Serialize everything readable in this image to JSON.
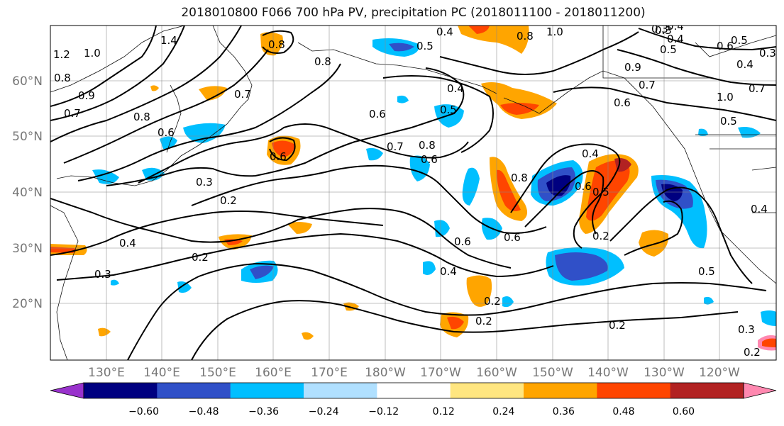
{
  "title": "2018010800 F066 700 hPa PV, precipitation PC (2018011100 - 2018011200)",
  "lat_labels": [
    "60°N",
    "50°N",
    "40°N",
    "30°N",
    "20°N"
  ],
  "lon_labels": [
    "130°E",
    "140°E",
    "150°E",
    "160°E",
    "170°E",
    "180°W",
    "170°W",
    "160°W",
    "150°W",
    "140°W",
    "130°W",
    "120°W"
  ],
  "colorbar": {
    "tick_labels": [
      "−0.60",
      "−0.48",
      "−0.36",
      "−0.24",
      "−0.12",
      "0.12",
      "0.24",
      "0.36",
      "0.48",
      "0.60"
    ],
    "colors": [
      "#9932cc",
      "#000080",
      "#3050c8",
      "#00bfff",
      "#b0e0ff",
      "#ffffff",
      "#ffe680",
      "#ffa500",
      "#ff4500",
      "#b22222",
      "#ff88b0"
    ]
  },
  "contour_labels": [
    "1.2",
    "1.0",
    "0.9",
    "1.4",
    "0.8",
    "0.7",
    "0.6",
    "0.8",
    "0.7",
    "0.6",
    "0.5",
    "0.8",
    "0.4",
    "0.3",
    "0.2",
    "0.3",
    "0.4",
    "0.2",
    "0.3",
    "0.6",
    "0.7",
    "0.8",
    "0.6",
    "0.5",
    "0.8",
    "0.4",
    "1.0",
    "0.4",
    "0.3",
    "0.5",
    "0.4",
    "0.8",
    "0.6",
    "0.8",
    "0.7",
    "1.0",
    "0.9",
    "0.6",
    "0.5",
    "0.3",
    "0.4",
    "0.4",
    "0.6",
    "0.5",
    "0.2",
    "0.6",
    "0.6",
    "0.4",
    "0.2",
    "0.2",
    "0.5",
    "0.2",
    "0.3",
    "0.2",
    "0.4",
    "0.7",
    "0.5"
  ]
}
